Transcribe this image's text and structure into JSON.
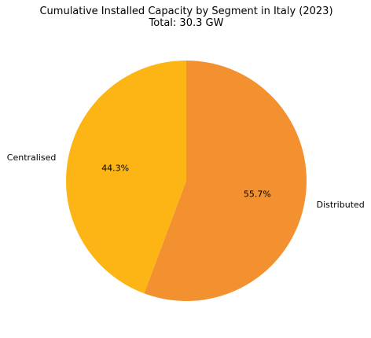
{
  "chart_data": {
    "type": "pie",
    "title": "Cumulative Installed Capacity by Segment in Italy (2023)",
    "subtitle": "Total: 30.3 GW",
    "categories": [
      "Distributed",
      "Centralised"
    ],
    "values": [
      55.7,
      44.3
    ],
    "value_labels": [
      "55.7%",
      "44.3%"
    ],
    "colors": [
      "#f39130",
      "#fdb515"
    ],
    "start_angle_deg": 90,
    "direction": "clockwise",
    "legend": "none",
    "grid": false
  }
}
